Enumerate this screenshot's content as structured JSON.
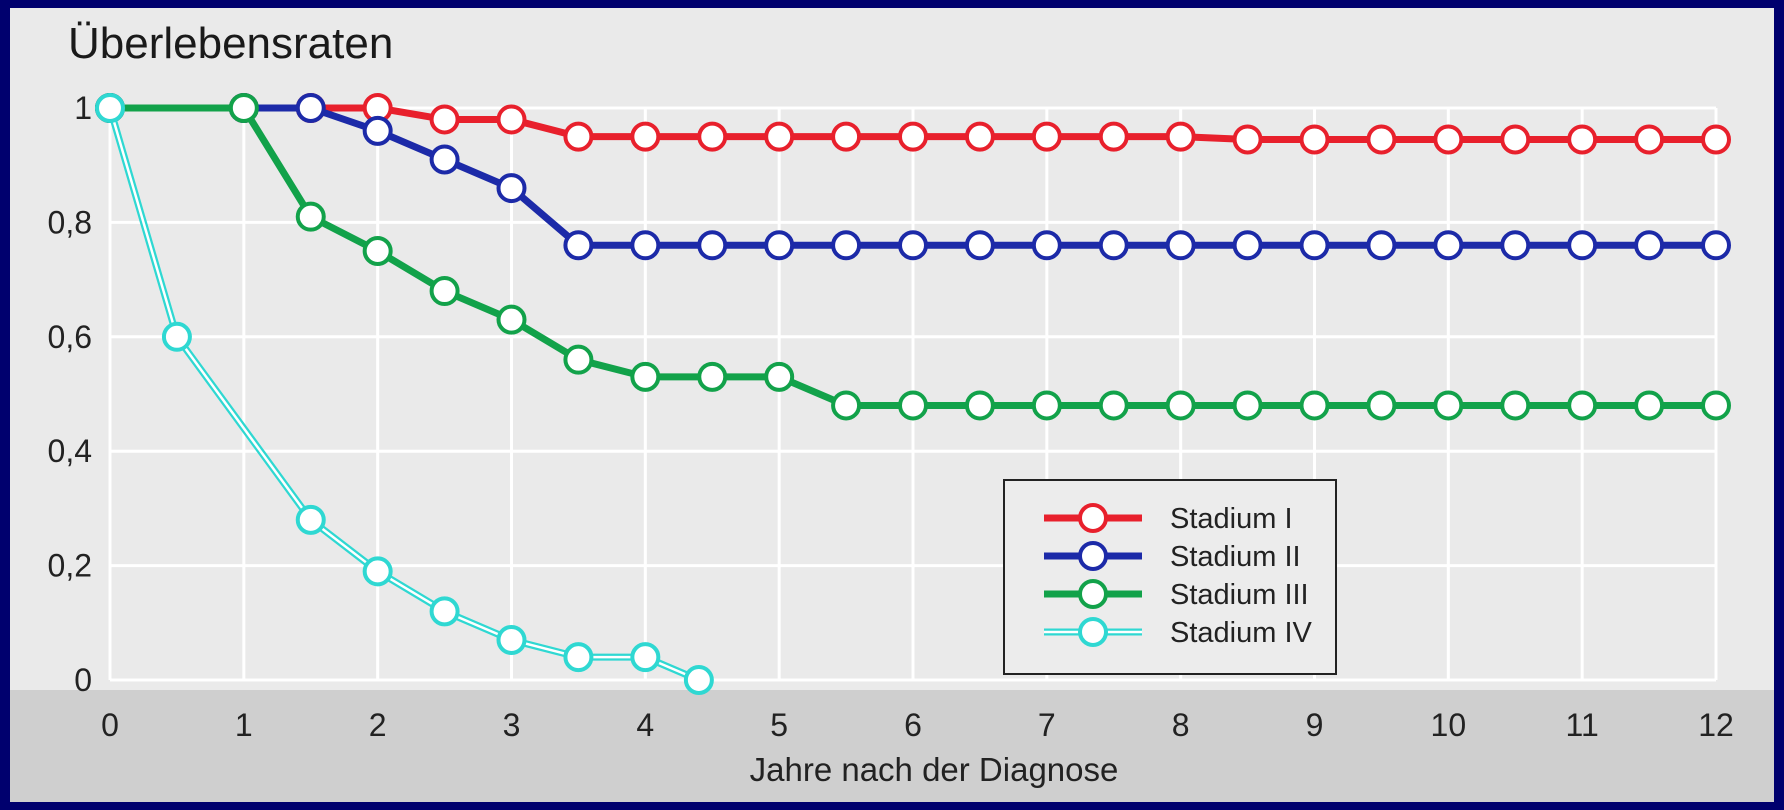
{
  "chart_data": {
    "type": "line",
    "title": "Überlebensraten",
    "xlabel": "Jahre nach der Diagnose",
    "ylabel": "",
    "xlim": [
      0,
      12
    ],
    "ylim": [
      0,
      1
    ],
    "grid": true,
    "legend_position": "center-right",
    "x_ticks": [
      "0",
      "1",
      "2",
      "3",
      "4",
      "5",
      "6",
      "7",
      "8",
      "9",
      "10",
      "11",
      "12"
    ],
    "y_ticks": [
      {
        "value": 0,
        "label": "0"
      },
      {
        "value": 0.2,
        "label": "0,2"
      },
      {
        "value": 0.4,
        "label": "0,4"
      },
      {
        "value": 0.6,
        "label": "0,6"
      },
      {
        "value": 0.8,
        "label": "0,8"
      },
      {
        "value": 1,
        "label": "1"
      }
    ],
    "series": [
      {
        "name": "Stadium I",
        "color": "#e8202c",
        "x": [
          0,
          1,
          1.5,
          2,
          2.5,
          3,
          3.5,
          4,
          4.5,
          5,
          5.5,
          6,
          6.5,
          7,
          7.5,
          8,
          8.5,
          9,
          9.5,
          10,
          10.5,
          11,
          11.5,
          12
        ],
        "y": [
          1,
          1,
          1,
          1,
          0.98,
          0.98,
          0.95,
          0.95,
          0.95,
          0.95,
          0.95,
          0.95,
          0.95,
          0.95,
          0.95,
          0.95,
          0.945,
          0.945,
          0.945,
          0.945,
          0.945,
          0.945,
          0.945,
          0.945
        ]
      },
      {
        "name": "Stadium II",
        "color": "#1c2aa8",
        "x": [
          0,
          1,
          1.5,
          2,
          2.5,
          3,
          3.5,
          4,
          4.5,
          5,
          5.5,
          6,
          6.5,
          7,
          7.5,
          8,
          8.5,
          9,
          9.5,
          10,
          10.5,
          11,
          11.5,
          12
        ],
        "y": [
          1,
          1,
          1,
          0.96,
          0.91,
          0.86,
          0.76,
          0.76,
          0.76,
          0.76,
          0.76,
          0.76,
          0.76,
          0.76,
          0.76,
          0.76,
          0.76,
          0.76,
          0.76,
          0.76,
          0.76,
          0.76,
          0.76,
          0.76
        ]
      },
      {
        "name": "Stadium III",
        "color": "#12a24a",
        "x": [
          0,
          1,
          1.5,
          2,
          2.5,
          3,
          3.5,
          4,
          4.5,
          5,
          5.5,
          6,
          6.5,
          7,
          7.5,
          8,
          8.5,
          9,
          9.5,
          10,
          10.5,
          11,
          11.5,
          12
        ],
        "y": [
          1,
          1,
          0.81,
          0.75,
          0.68,
          0.63,
          0.56,
          0.53,
          0.53,
          0.53,
          0.48,
          0.48,
          0.48,
          0.48,
          0.48,
          0.48,
          0.48,
          0.48,
          0.48,
          0.48,
          0.48,
          0.48,
          0.48,
          0.48
        ]
      },
      {
        "name": "Stadium IV",
        "color": "#2fd8d2",
        "x": [
          0,
          0.5,
          1.5,
          2,
          2.5,
          3,
          3.5,
          4,
          4.4
        ],
        "y": [
          1,
          0.6,
          0.28,
          0.19,
          0.12,
          0.07,
          0.04,
          0.04,
          0
        ]
      }
    ]
  }
}
